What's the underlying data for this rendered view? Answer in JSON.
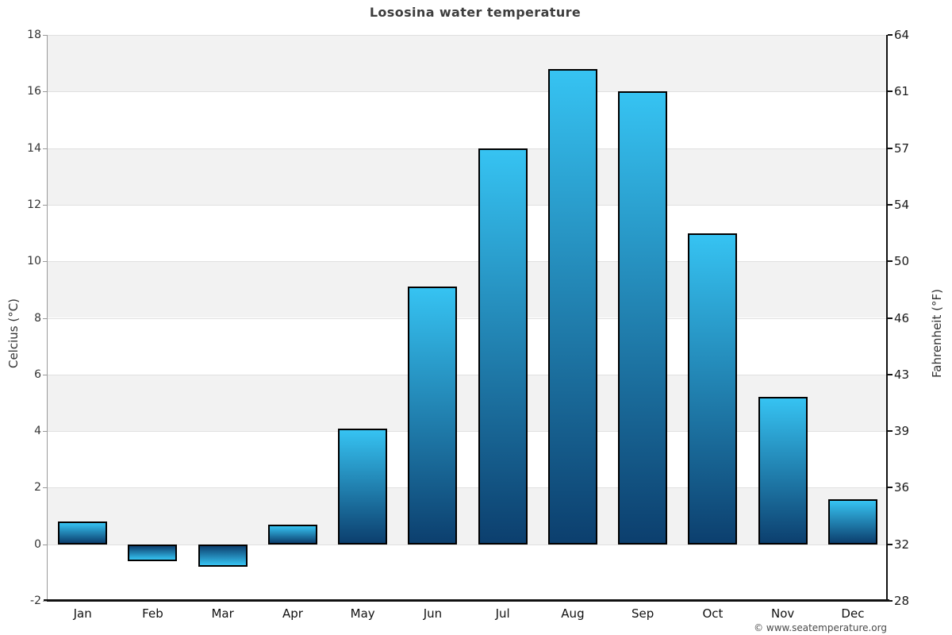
{
  "title": "Lososina water temperature",
  "watermark": "© www.seatemperature.org",
  "chart_data": {
    "type": "bar",
    "title": "Lososina water temperature",
    "categories": [
      "Jan",
      "Feb",
      "Mar",
      "Apr",
      "May",
      "Jun",
      "Jul",
      "Aug",
      "Sep",
      "Oct",
      "Nov",
      "Dec"
    ],
    "values": [
      0.8,
      -0.6,
      -0.8,
      0.7,
      4.1,
      9.1,
      14.0,
      16.8,
      16.0,
      11.0,
      5.2,
      1.6
    ],
    "ylabel_left": "Celcius (°C)",
    "ylabel_right": "Fahrenheit (°F)",
    "ylim": [
      -2,
      18
    ],
    "celsius_ticks": [
      18,
      16,
      14,
      12,
      10,
      8,
      6,
      4,
      2,
      0,
      -2
    ],
    "fahrenheit_ticks": [
      64,
      61,
      57,
      54,
      50,
      46,
      43,
      39,
      36,
      32,
      28
    ],
    "grid": true,
    "legend": "none",
    "band_color": "#f2f2f2",
    "bar_color_light": "#36c3f2",
    "bar_color_dark": "#0c3f6e",
    "bar_border_color": "#000000"
  },
  "colors": {
    "title_text": "#3d3d3d",
    "tick_text": "#333333",
    "month_text": "#111111",
    "left_axis_line": "#999999",
    "dark_axis_line": "#111111",
    "gridline": "#e0e0e0",
    "watermark_text": "#4a4a4a",
    "background": "#ffffff"
  }
}
